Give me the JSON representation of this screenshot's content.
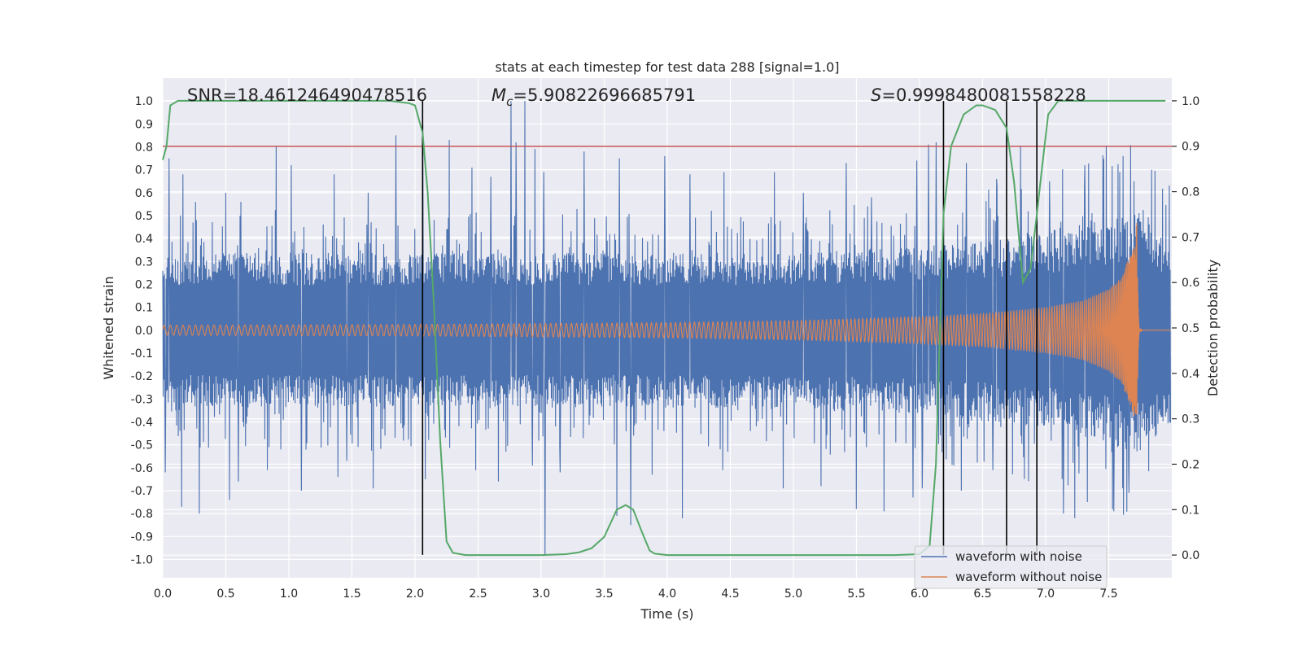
{
  "chart_data": {
    "type": "line",
    "title": "stats at each timestep for test data 288 [signal=1.0]",
    "xlabel": "Time (s)",
    "ylabel": "Whitened strain",
    "y2label": "Detection probability",
    "xlim": [
      0.0,
      8.0
    ],
    "ylim": [
      -1.08,
      1.1
    ],
    "y2lim": [
      -0.05,
      1.05
    ],
    "x_ticks": [
      "0.0",
      "0.5",
      "1.0",
      "1.5",
      "2.0",
      "2.5",
      "3.0",
      "3.5",
      "4.0",
      "4.5",
      "5.0",
      "5.5",
      "6.0",
      "6.5",
      "7.0",
      "7.5"
    ],
    "y_ticks": [
      "-1.0",
      "-0.9",
      "-0.8",
      "-0.7",
      "-0.6",
      "-0.5",
      "-0.4",
      "-0.3",
      "-0.2",
      "-0.1",
      "0.0",
      "0.1",
      "0.2",
      "0.3",
      "0.4",
      "0.5",
      "0.6",
      "0.7",
      "0.8",
      "0.9",
      "1.0"
    ],
    "y2_ticks": [
      "0.0",
      "0.1",
      "0.2",
      "0.3",
      "0.4",
      "0.5",
      "0.6",
      "0.7",
      "0.8",
      "0.9",
      "1.0"
    ],
    "grid": true,
    "legend_position": "lower-right",
    "annotations": {
      "snr": "SNR=18.461246490478516",
      "mc_symbol": "M",
      "mc_sub": "c",
      "mc_value": "=5.90822696685791",
      "s_symbol": "S",
      "s_value": "=0.9998480081558228"
    },
    "threshold": {
      "y2": 0.9,
      "color": "#c44e52"
    },
    "vertical_lines_x": [
      2.06,
      6.19,
      6.69,
      6.93
    ],
    "series": [
      {
        "name": "waveform with noise",
        "color": "#4c72b0",
        "axis": "left",
        "envelope": {
          "x": [
            0.0,
            2.0,
            4.0,
            5.5,
            6.5,
            7.0,
            7.5,
            7.73,
            8.0
          ],
          "upper_typical": [
            0.26,
            0.26,
            0.26,
            0.27,
            0.3,
            0.33,
            0.38,
            0.42,
            0.3
          ],
          "lower_typical": [
            -0.26,
            -0.26,
            -0.26,
            -0.27,
            -0.3,
            -0.33,
            -0.38,
            -0.42,
            -0.3
          ]
        },
        "peaks": [
          [
            0.05,
            0.75
          ],
          [
            0.16,
            0.68
          ],
          [
            0.26,
            0.56
          ],
          [
            0.5,
            0.6
          ],
          [
            0.62,
            0.56
          ],
          [
            0.9,
            0.8
          ],
          [
            1.02,
            0.72
          ],
          [
            1.36,
            0.68
          ],
          [
            1.63,
            0.6
          ],
          [
            1.85,
            0.85
          ],
          [
            2.06,
            0.9
          ],
          [
            2.27,
            0.83
          ],
          [
            2.45,
            0.71
          ],
          [
            2.6,
            0.67
          ],
          [
            2.76,
            1.0
          ],
          [
            2.8,
            0.82
          ],
          [
            2.87,
            1.0
          ],
          [
            2.95,
            0.79
          ],
          [
            3.02,
            0.69
          ],
          [
            3.34,
            0.78
          ],
          [
            3.62,
            0.75
          ],
          [
            3.98,
            0.76
          ],
          [
            4.18,
            0.68
          ],
          [
            4.45,
            0.69
          ],
          [
            4.85,
            0.69
          ],
          [
            5.08,
            0.6
          ],
          [
            5.42,
            0.73
          ],
          [
            5.62,
            0.58
          ],
          [
            5.98,
            0.74
          ],
          [
            6.07,
            0.81
          ],
          [
            6.13,
            0.82
          ],
          [
            6.37,
            0.73
          ],
          [
            6.61,
            0.66
          ],
          [
            6.8,
            0.8
          ],
          [
            7.03,
            0.65
          ],
          [
            7.31,
            0.72
          ],
          [
            7.48,
            0.8
          ],
          [
            7.7,
            0.65
          ],
          [
            7.84,
            0.7
          ]
        ],
        "troughs": [
          [
            0.02,
            -0.62
          ],
          [
            0.15,
            -0.77
          ],
          [
            0.29,
            -0.8
          ],
          [
            0.53,
            -0.74
          ],
          [
            0.6,
            -0.66
          ],
          [
            0.83,
            -0.61
          ],
          [
            1.1,
            -0.7
          ],
          [
            1.39,
            -0.64
          ],
          [
            1.46,
            -0.57
          ],
          [
            1.67,
            -0.69
          ],
          [
            1.85,
            -0.64
          ],
          [
            2.08,
            -0.65
          ],
          [
            2.48,
            -0.61
          ],
          [
            2.66,
            -0.66
          ],
          [
            2.93,
            -0.59
          ],
          [
            3.03,
            -0.98
          ],
          [
            3.15,
            -0.62
          ],
          [
            3.6,
            -0.81
          ],
          [
            3.71,
            -0.85
          ],
          [
            3.88,
            -0.63
          ],
          [
            4.12,
            -0.82
          ],
          [
            4.44,
            -0.61
          ],
          [
            4.92,
            -0.69
          ],
          [
            5.22,
            -0.68
          ],
          [
            5.5,
            -0.78
          ],
          [
            5.72,
            -0.79
          ],
          [
            5.95,
            -0.73
          ],
          [
            6.02,
            -0.69
          ],
          [
            6.33,
            -0.7
          ],
          [
            6.58,
            -0.61
          ],
          [
            7.14,
            -0.8
          ],
          [
            7.23,
            -0.82
          ],
          [
            7.33,
            -0.75
          ],
          [
            7.54,
            -0.79
          ],
          [
            7.66,
            -0.71
          ]
        ]
      },
      {
        "name": "waveform without noise",
        "color": "#dd8452",
        "axis": "left",
        "chirp": {
          "merger_time": 7.73,
          "end_time": 7.76,
          "amplitude_x": [
            0.0,
            2.0,
            4.0,
            5.0,
            6.0,
            6.5,
            7.0,
            7.3,
            7.5,
            7.6,
            7.7,
            7.73
          ],
          "amplitude_y": [
            0.022,
            0.025,
            0.033,
            0.042,
            0.058,
            0.072,
            0.1,
            0.13,
            0.18,
            0.23,
            0.38,
            0.5
          ],
          "frequency_start_hz": 20
        }
      },
      {
        "name": "detection probability",
        "color": "#55a868",
        "axis": "right",
        "x": [
          0.0,
          0.03,
          0.06,
          0.12,
          0.2,
          0.5,
          1.0,
          1.5,
          1.8,
          1.95,
          2.0,
          2.06,
          2.1,
          2.15,
          2.2,
          2.25,
          2.3,
          2.4,
          2.5,
          2.8,
          3.0,
          3.2,
          3.3,
          3.4,
          3.5,
          3.55,
          3.6,
          3.67,
          3.73,
          3.8,
          3.86,
          3.9,
          4.0,
          4.1,
          4.5,
          5.0,
          5.5,
          5.8,
          6.0,
          6.08,
          6.13,
          6.19,
          6.25,
          6.35,
          6.45,
          6.5,
          6.6,
          6.69,
          6.75,
          6.82,
          6.88,
          6.93,
          6.97,
          7.02,
          7.1,
          7.5,
          7.95
        ],
        "y": [
          0.87,
          0.9,
          0.99,
          1.0,
          1.0,
          1.0,
          1.0,
          1.0,
          1.0,
          0.995,
          0.99,
          0.93,
          0.8,
          0.55,
          0.25,
          0.03,
          0.005,
          0.0,
          0.0,
          0.0,
          0.0,
          0.002,
          0.006,
          0.015,
          0.04,
          0.07,
          0.1,
          0.11,
          0.1,
          0.05,
          0.01,
          0.003,
          0.0,
          0.0,
          0.0,
          0.0,
          0.0,
          0.0,
          0.002,
          0.02,
          0.2,
          0.75,
          0.9,
          0.97,
          0.99,
          0.99,
          0.98,
          0.94,
          0.82,
          0.6,
          0.63,
          0.75,
          0.85,
          0.97,
          1.0,
          1.0,
          1.0
        ]
      }
    ]
  }
}
